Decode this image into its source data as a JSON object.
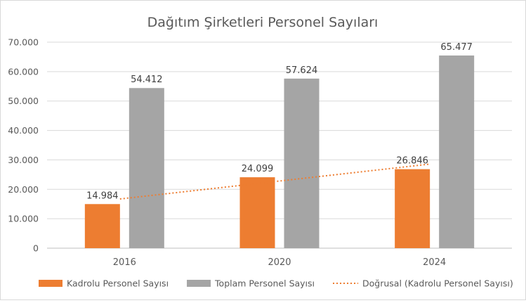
{
  "chart_data": {
    "type": "bar",
    "title": "Dağıtım Şirketleri Personel Sayıları",
    "categories": [
      "2016",
      "2020",
      "2024"
    ],
    "series": [
      {
        "name": "Kadrolu Personel Sayısı",
        "values": [
          14984,
          24099,
          26846
        ],
        "labels": [
          "14.984",
          "24.099",
          "26.846"
        ],
        "color": "#ED7D31"
      },
      {
        "name": "Toplam Personel Sayısı",
        "values": [
          54412,
          57624,
          65477
        ],
        "labels": [
          "54.412",
          "57.624",
          "65.477"
        ],
        "color": "#A5A5A5"
      }
    ],
    "trendline": {
      "name": "Doğrusal (Kadrolu Personel Sayısı)",
      "of_series": "Kadrolu Personel Sayısı",
      "type": "linear",
      "style": "dotted",
      "color": "#ED7D31"
    },
    "ylim": [
      0,
      70000
    ],
    "yticks": [
      0,
      10000,
      20000,
      30000,
      40000,
      50000,
      60000,
      70000
    ],
    "ytick_labels": [
      "0",
      "10.000",
      "20.000",
      "30.000",
      "40.000",
      "50.000",
      "60.000",
      "70.000"
    ],
    "grid": true,
    "legend": "bottom",
    "xlabel": "",
    "ylabel": ""
  }
}
